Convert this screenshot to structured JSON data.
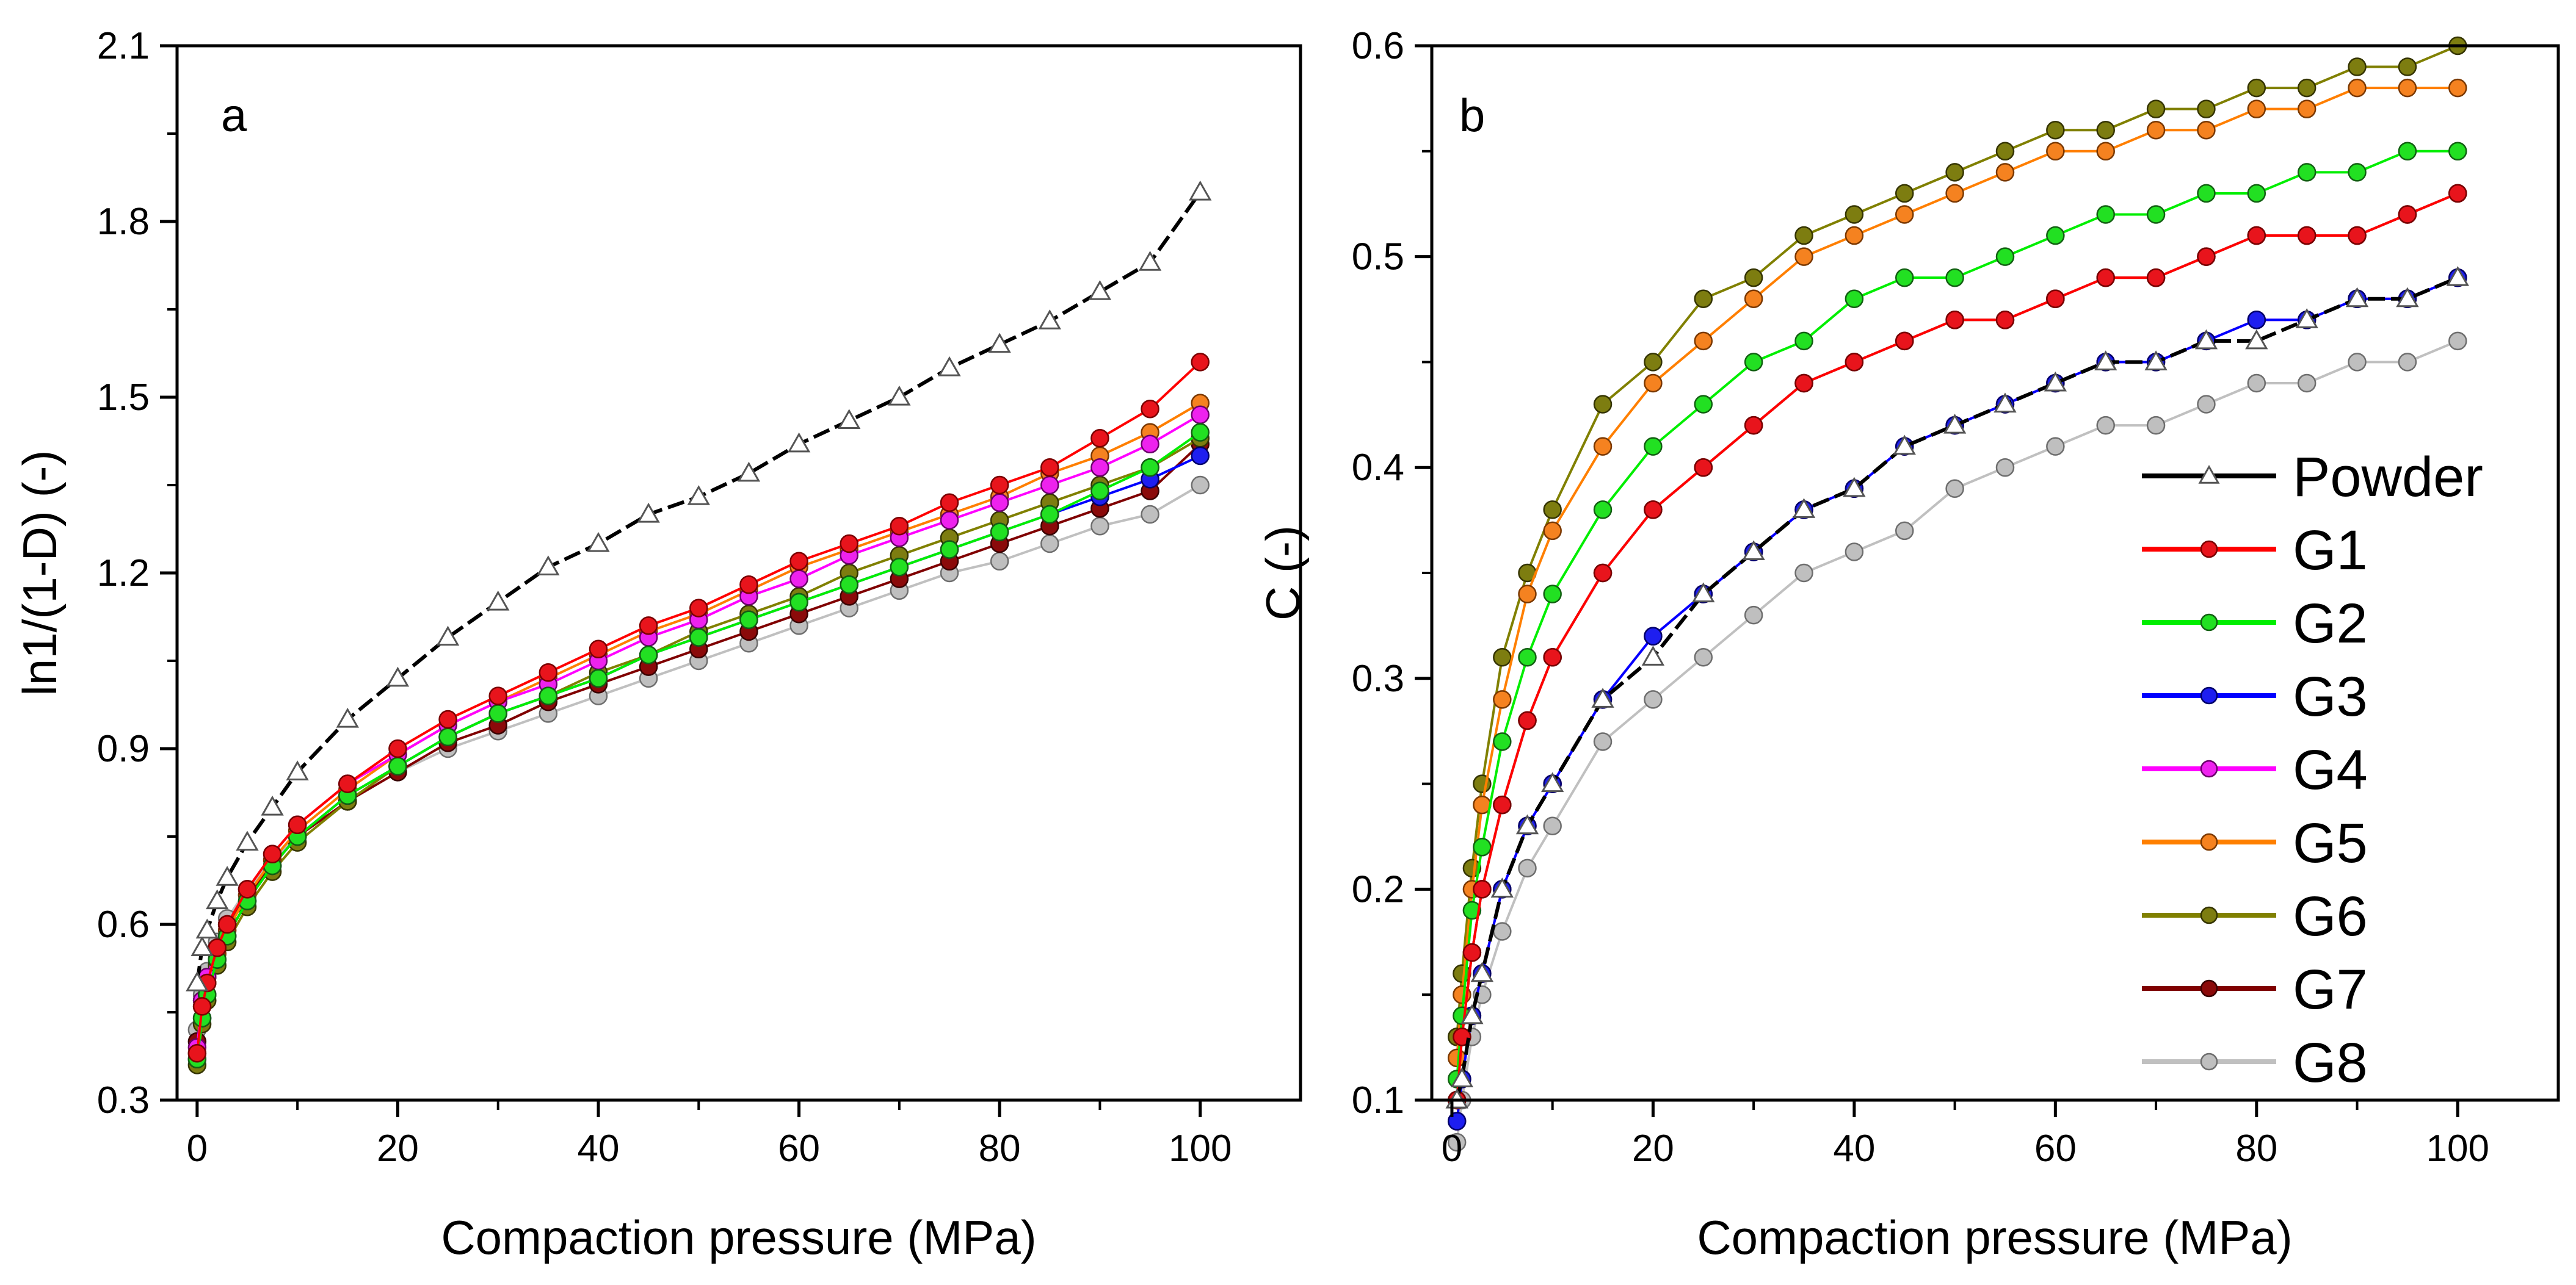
{
  "figure": {
    "legend": [
      {
        "name": "Powder",
        "line": "#000000",
        "fill": "#ffffff",
        "edge": "#555555",
        "marker": "triangle"
      },
      {
        "name": "G1",
        "line": "#ff0000",
        "fill": "#e8141c",
        "edge": "#7a0000",
        "marker": "circle"
      },
      {
        "name": "G2",
        "line": "#00ee00",
        "fill": "#22e022",
        "edge": "#126012",
        "marker": "circle"
      },
      {
        "name": "G3",
        "line": "#0000ff",
        "fill": "#1e1ef0",
        "edge": "#00006a",
        "marker": "circle"
      },
      {
        "name": "G4",
        "line": "#ff00ff",
        "fill": "#ee22ee",
        "edge": "#6a006a",
        "marker": "circle"
      },
      {
        "name": "G5",
        "line": "#ff7f00",
        "fill": "#f58220",
        "edge": "#7a3800",
        "marker": "circle"
      },
      {
        "name": "G6",
        "line": "#808000",
        "fill": "#7d7d10",
        "edge": "#343400",
        "marker": "circle"
      },
      {
        "name": "G7",
        "line": "#800000",
        "fill": "#8b0a0a",
        "edge": "#3a0000",
        "marker": "circle"
      },
      {
        "name": "G8",
        "line": "#c0c0c0",
        "fill": "#bfbfbf",
        "edge": "#6e6e6e",
        "marker": "circle"
      }
    ]
  },
  "chart_data": [
    {
      "panel": "a",
      "type": "scatter",
      "xlabel": "Compaction pressure (MPa)",
      "ylabel": "ln1/(1-D) (-)",
      "xlim": [
        -2,
        110
      ],
      "ylim": [
        0.3,
        2.1
      ],
      "xticks": [
        0,
        20,
        40,
        60,
        80,
        100
      ],
      "yticks": [
        0.3,
        0.6,
        0.9,
        1.2,
        1.5,
        1.8,
        2.1
      ],
      "ytick_labels": [
        "0.3",
        "0.6",
        "0.9",
        "1.2",
        "1.5",
        "1.8",
        "2.1"
      ],
      "x": [
        0,
        0.5,
        1,
        2,
        3,
        5,
        7.5,
        10,
        15,
        20,
        25,
        30,
        35,
        40,
        45,
        50,
        55,
        60,
        65,
        70,
        75,
        80,
        85,
        90,
        95,
        100
      ],
      "series": [
        {
          "name": "Powder",
          "values": [
            0.5,
            0.56,
            0.59,
            0.64,
            0.68,
            0.74,
            0.8,
            0.86,
            0.95,
            1.02,
            1.09,
            1.15,
            1.21,
            1.25,
            1.3,
            1.33,
            1.37,
            1.42,
            1.46,
            1.5,
            1.55,
            1.59,
            1.63,
            1.68,
            1.73,
            1.85
          ]
        },
        {
          "name": "G1",
          "values": [
            0.38,
            0.46,
            0.5,
            0.56,
            0.6,
            0.66,
            0.72,
            0.77,
            0.84,
            0.9,
            0.95,
            0.99,
            1.03,
            1.07,
            1.11,
            1.14,
            1.18,
            1.22,
            1.25,
            1.28,
            1.32,
            1.35,
            1.38,
            1.43,
            1.48,
            1.56
          ]
        },
        {
          "name": "G2",
          "values": [
            0.37,
            0.44,
            0.48,
            0.54,
            0.58,
            0.64,
            0.7,
            0.75,
            0.82,
            0.87,
            0.92,
            0.96,
            0.99,
            1.02,
            1.06,
            1.09,
            1.12,
            1.15,
            1.18,
            1.21,
            1.24,
            1.27,
            1.3,
            1.34,
            1.38,
            1.44
          ]
        },
        {
          "name": "G3",
          "values": [
            0.37,
            0.44,
            0.48,
            0.54,
            0.58,
            0.64,
            0.7,
            0.75,
            0.82,
            0.87,
            0.92,
            0.96,
            0.99,
            1.02,
            1.06,
            1.09,
            1.12,
            1.15,
            1.18,
            1.21,
            1.24,
            1.27,
            1.3,
            1.33,
            1.36,
            1.4
          ]
        },
        {
          "name": "G4",
          "values": [
            0.39,
            0.47,
            0.51,
            0.56,
            0.6,
            0.66,
            0.72,
            0.77,
            0.84,
            0.89,
            0.94,
            0.98,
            1.01,
            1.05,
            1.09,
            1.12,
            1.16,
            1.19,
            1.23,
            1.26,
            1.29,
            1.32,
            1.35,
            1.38,
            1.42,
            1.47
          ]
        },
        {
          "name": "G5",
          "values": [
            0.38,
            0.46,
            0.5,
            0.55,
            0.59,
            0.65,
            0.71,
            0.76,
            0.83,
            0.89,
            0.94,
            0.98,
            1.02,
            1.06,
            1.1,
            1.13,
            1.17,
            1.21,
            1.24,
            1.27,
            1.3,
            1.33,
            1.37,
            1.4,
            1.44,
            1.49
          ]
        },
        {
          "name": "G6",
          "values": [
            0.36,
            0.43,
            0.47,
            0.53,
            0.57,
            0.63,
            0.69,
            0.74,
            0.81,
            0.87,
            0.92,
            0.96,
            0.99,
            1.03,
            1.06,
            1.1,
            1.13,
            1.16,
            1.2,
            1.23,
            1.26,
            1.29,
            1.32,
            1.35,
            1.38,
            1.43
          ]
        },
        {
          "name": "G7",
          "values": [
            0.4,
            0.47,
            0.51,
            0.56,
            0.6,
            0.65,
            0.7,
            0.75,
            0.81,
            0.86,
            0.91,
            0.94,
            0.98,
            1.01,
            1.04,
            1.07,
            1.1,
            1.13,
            1.16,
            1.19,
            1.22,
            1.25,
            1.28,
            1.31,
            1.34,
            1.42
          ]
        },
        {
          "name": "G8",
          "values": [
            0.42,
            0.48,
            0.52,
            0.57,
            0.61,
            0.66,
            0.71,
            0.75,
            0.81,
            0.86,
            0.9,
            0.93,
            0.96,
            0.99,
            1.02,
            1.05,
            1.08,
            1.11,
            1.14,
            1.17,
            1.2,
            1.22,
            1.25,
            1.28,
            1.3,
            1.35
          ]
        }
      ]
    },
    {
      "panel": "b",
      "type": "scatter",
      "xlabel": "Compaction pressure (MPa)",
      "ylabel": "C (-)",
      "xlim": [
        -2,
        110
      ],
      "ylim": [
        0.1,
        0.6
      ],
      "xticks": [
        0,
        20,
        40,
        60,
        80,
        100
      ],
      "yticks": [
        0.1,
        0.2,
        0.3,
        0.4,
        0.5,
        0.6
      ],
      "ytick_labels": [
        "0.1",
        "0.2",
        "0.3",
        "0.4",
        "0.5",
        "0.6"
      ],
      "x": [
        0.5,
        1,
        2,
        3,
        5,
        7.5,
        10,
        15,
        20,
        25,
        30,
        35,
        40,
        45,
        50,
        55,
        60,
        65,
        70,
        75,
        80,
        85,
        90,
        95,
        100
      ],
      "series": [
        {
          "name": "Powder",
          "values": [
            0.1,
            0.11,
            0.14,
            0.16,
            0.2,
            0.23,
            0.25,
            0.29,
            0.31,
            0.34,
            0.36,
            0.38,
            0.39,
            0.41,
            0.42,
            0.43,
            0.44,
            0.45,
            0.45,
            0.46,
            0.46,
            0.47,
            0.48,
            0.48,
            0.49
          ]
        },
        {
          "name": "G1",
          "values": [
            0.1,
            0.13,
            0.17,
            0.2,
            0.24,
            0.28,
            0.31,
            0.35,
            0.38,
            0.4,
            0.42,
            0.44,
            0.45,
            0.46,
            0.47,
            0.47,
            0.48,
            0.49,
            0.49,
            0.5,
            0.51,
            0.51,
            0.51,
            0.52,
            0.53
          ]
        },
        {
          "name": "G2",
          "values": [
            0.11,
            0.14,
            0.19,
            0.22,
            0.27,
            0.31,
            0.34,
            0.38,
            0.41,
            0.43,
            0.45,
            0.46,
            0.48,
            0.49,
            0.49,
            0.5,
            0.51,
            0.52,
            0.52,
            0.53,
            0.53,
            0.54,
            0.54,
            0.55,
            0.55
          ]
        },
        {
          "name": "G3",
          "values": [
            0.09,
            0.11,
            0.14,
            0.16,
            0.2,
            0.23,
            0.25,
            0.29,
            0.32,
            0.34,
            0.36,
            0.38,
            0.39,
            0.41,
            0.42,
            0.43,
            0.44,
            0.45,
            0.45,
            0.46,
            0.47,
            0.47,
            0.48,
            0.48,
            0.49
          ]
        },
        {
          "name": "G4",
          "values": [
            0.09,
            0.11,
            0.14,
            0.16,
            0.2,
            0.23,
            0.25,
            0.29,
            0.32,
            0.34,
            0.36,
            0.38,
            0.39,
            0.41,
            0.42,
            0.43,
            0.44,
            0.45,
            0.45,
            0.46,
            0.47,
            0.47,
            0.48,
            0.48,
            0.49
          ]
        },
        {
          "name": "G5",
          "values": [
            0.12,
            0.15,
            0.2,
            0.24,
            0.29,
            0.34,
            0.37,
            0.41,
            0.44,
            0.46,
            0.48,
            0.5,
            0.51,
            0.52,
            0.53,
            0.54,
            0.55,
            0.55,
            0.56,
            0.56,
            0.57,
            0.57,
            0.58,
            0.58,
            0.58
          ]
        },
        {
          "name": "G6",
          "values": [
            0.13,
            0.16,
            0.21,
            0.25,
            0.31,
            0.35,
            0.38,
            0.43,
            0.45,
            0.48,
            0.49,
            0.51,
            0.52,
            0.53,
            0.54,
            0.55,
            0.56,
            0.56,
            0.57,
            0.57,
            0.58,
            0.58,
            0.59,
            0.59,
            0.6
          ]
        },
        {
          "name": "G7",
          "values": [
            0.1,
            0.13,
            0.17,
            0.2,
            0.24,
            0.28,
            0.31,
            0.35,
            0.38,
            0.4,
            0.42,
            0.44,
            0.45,
            0.46,
            0.47,
            0.47,
            0.48,
            0.49,
            0.49,
            0.5,
            0.51,
            0.51,
            0.51,
            0.52,
            0.53
          ]
        },
        {
          "name": "G8",
          "values": [
            0.08,
            0.1,
            0.13,
            0.15,
            0.18,
            0.21,
            0.23,
            0.27,
            0.29,
            0.31,
            0.33,
            0.35,
            0.36,
            0.37,
            0.39,
            0.4,
            0.41,
            0.42,
            0.42,
            0.43,
            0.44,
            0.44,
            0.45,
            0.45,
            0.46
          ]
        }
      ]
    }
  ]
}
